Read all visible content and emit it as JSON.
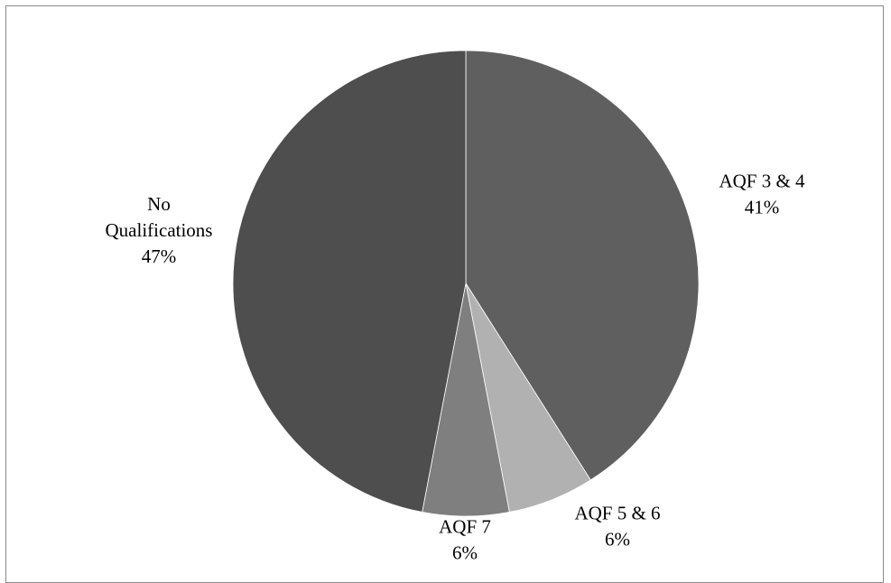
{
  "chart_data": {
    "type": "pie",
    "start_angle_deg": 0,
    "direction": "clockwise",
    "slices": [
      {
        "label_lines": [
          "AQF 3 & 4"
        ],
        "value": 41,
        "value_label": "41%",
        "color": "#5f5f5f"
      },
      {
        "label_lines": [
          "AQF 5 & 6"
        ],
        "value": 6,
        "value_label": "6%",
        "color": "#b1b1b1"
      },
      {
        "label_lines": [
          "AQF 7"
        ],
        "value": 6,
        "value_label": "6%",
        "color": "#7f7f7f"
      },
      {
        "label_lines": [
          "No",
          "Qualifications"
        ],
        "value": 47,
        "value_label": "47%",
        "color": "#4e4e4e"
      }
    ],
    "legend": "none",
    "border_color": "#8a8a8a",
    "slice_edge_color": "#ffffff"
  }
}
